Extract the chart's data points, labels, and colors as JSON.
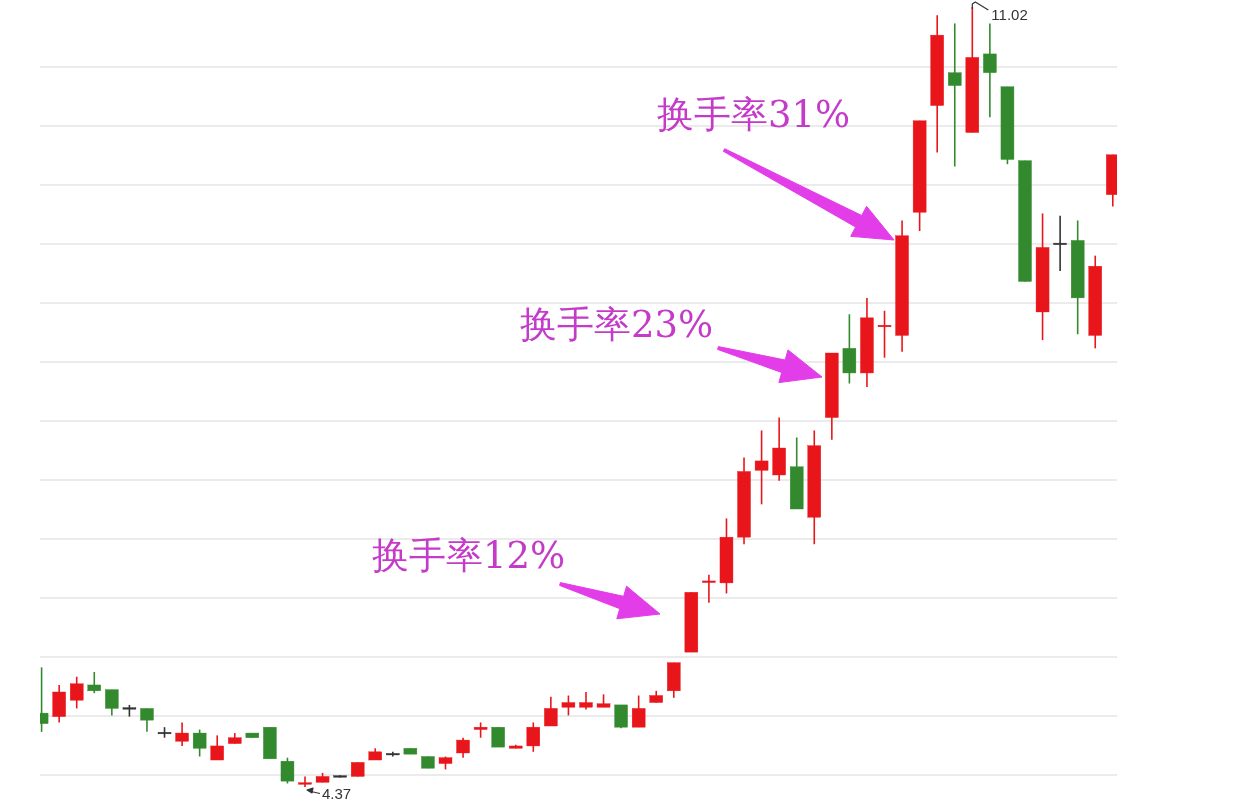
{
  "chart_data": {
    "type": "candlestick",
    "categories": [
      null,
      null,
      null,
      null,
      null,
      null,
      null,
      null,
      null,
      null,
      null,
      null,
      null,
      null,
      null,
      null,
      null,
      null,
      null,
      null,
      null,
      null,
      null,
      null,
      null,
      null,
      null,
      null,
      null,
      null,
      null,
      null,
      null,
      null,
      null,
      null,
      null,
      null,
      null,
      null,
      null,
      null,
      null,
      null,
      null,
      null,
      null,
      null,
      null,
      null,
      null,
      null,
      null,
      null,
      null,
      null,
      null,
      null,
      null,
      null,
      null,
      null
    ],
    "ohlc": [
      [
        5.0,
        5.39,
        4.84,
        4.91
      ],
      [
        4.97,
        5.24,
        4.92,
        5.18
      ],
      [
        5.11,
        5.31,
        5.04,
        5.25
      ],
      [
        5.24,
        5.35,
        5.17,
        5.19
      ],
      [
        5.2,
        5.2,
        4.98,
        5.04
      ],
      [
        5.04,
        5.07,
        4.97,
        5.04
      ],
      [
        5.04,
        5.04,
        4.84,
        4.94
      ],
      [
        4.83,
        4.88,
        4.79,
        4.83
      ],
      [
        4.76,
        4.92,
        4.72,
        4.83
      ],
      [
        4.83,
        4.86,
        4.63,
        4.7
      ],
      [
        4.6,
        4.81,
        4.6,
        4.72
      ],
      [
        4.74,
        4.83,
        4.74,
        4.79
      ],
      [
        4.83,
        4.83,
        4.79,
        4.79
      ],
      [
        4.88,
        4.88,
        4.61,
        4.61
      ],
      [
        4.59,
        4.62,
        4.4,
        4.42
      ],
      [
        4.4,
        4.46,
        4.37,
        4.4
      ],
      [
        4.41,
        4.49,
        4.41,
        4.46
      ],
      [
        4.46,
        4.47,
        4.45,
        4.46
      ],
      [
        4.46,
        4.58,
        4.46,
        4.58
      ],
      [
        4.6,
        4.7,
        4.6,
        4.67
      ],
      [
        4.65,
        4.67,
        4.63,
        4.65
      ],
      [
        4.7,
        4.7,
        4.65,
        4.65
      ],
      [
        4.63,
        4.63,
        4.53,
        4.53
      ],
      [
        4.57,
        4.63,
        4.52,
        4.62
      ],
      [
        4.66,
        4.79,
        4.62,
        4.77
      ],
      [
        4.86,
        4.92,
        4.79,
        4.88
      ],
      [
        4.88,
        4.88,
        4.71,
        4.71
      ],
      [
        4.7,
        4.73,
        4.7,
        4.72
      ],
      [
        4.72,
        4.92,
        4.67,
        4.88
      ],
      [
        4.89,
        5.14,
        4.89,
        5.04
      ],
      [
        5.05,
        5.15,
        4.98,
        5.09
      ],
      [
        5.05,
        5.18,
        5.03,
        5.09
      ],
      [
        5.05,
        5.16,
        5.05,
        5.08
      ],
      [
        5.07,
        5.07,
        4.87,
        4.88
      ],
      [
        4.88,
        5.15,
        4.88,
        5.04
      ],
      [
        5.09,
        5.19,
        5.09,
        5.15
      ],
      [
        5.19,
        5.43,
        5.13,
        5.43
      ],
      [
        5.52,
        6.03,
        5.52,
        6.03
      ],
      [
        6.12,
        6.18,
        5.94,
        6.12
      ],
      [
        6.11,
        6.66,
        6.02,
        6.5
      ],
      [
        6.5,
        7.18,
        6.44,
        7.06
      ],
      [
        7.07,
        7.41,
        6.78,
        7.15
      ],
      [
        7.03,
        7.52,
        6.98,
        7.26
      ],
      [
        7.1,
        7.35,
        6.74,
        6.74
      ],
      [
        6.67,
        7.41,
        6.44,
        7.28
      ],
      [
        7.52,
        8.07,
        7.33,
        8.07
      ],
      [
        8.11,
        8.4,
        7.81,
        7.9
      ],
      [
        7.9,
        8.54,
        7.78,
        8.37
      ],
      [
        8.3,
        8.43,
        8.03,
        8.3
      ],
      [
        8.22,
        9.2,
        8.08,
        9.07
      ],
      [
        9.27,
        10.05,
        9.11,
        10.05
      ],
      [
        10.18,
        10.95,
        9.78,
        10.78
      ],
      [
        10.46,
        10.88,
        9.66,
        10.35
      ],
      [
        9.95,
        11.02,
        9.95,
        10.59
      ],
      [
        10.62,
        10.88,
        10.08,
        10.46
      ],
      [
        10.34,
        10.34,
        9.68,
        9.72
      ],
      [
        9.71,
        9.71,
        8.68,
        8.68
      ],
      [
        8.42,
        9.26,
        8.18,
        8.97
      ],
      [
        9.0,
        9.24,
        8.77,
        9.0
      ],
      [
        9.03,
        9.2,
        8.23,
        8.54
      ],
      [
        8.22,
        8.9,
        8.11,
        8.81
      ],
      [
        9.42,
        9.76,
        9.32,
        9.76
      ]
    ],
    "colors": [
      "#338a2e",
      "#e8161b",
      "#e8161b",
      "#338a2e",
      "#338a2e",
      "#333333",
      "#338a2e",
      "#333333",
      "#e8161b",
      "#338a2e",
      "#e8161b",
      "#e8161b",
      "#338a2e",
      "#338a2e",
      "#338a2e",
      "#e8161b",
      "#e8161b",
      "#333333",
      "#e8161b",
      "#e8161b",
      "#333333",
      "#338a2e",
      "#338a2e",
      "#e8161b",
      "#e8161b",
      "#e8161b",
      "#338a2e",
      "#e8161b",
      "#e8161b",
      "#e8161b",
      "#e8161b",
      "#e8161b",
      "#e8161b",
      "#338a2e",
      "#e8161b",
      "#e8161b",
      "#e8161b",
      "#e8161b",
      "#e8161b",
      "#e8161b",
      "#e8161b",
      "#e8161b",
      "#e8161b",
      "#338a2e",
      "#e8161b",
      "#e8161b",
      "#338a2e",
      "#e8161b",
      "#e8161b",
      "#e8161b",
      "#e8161b",
      "#e8161b",
      "#338a2e",
      "#e8161b",
      "#338a2e",
      "#338a2e",
      "#338a2e",
      "#e8161b",
      "#333333",
      "#338a2e",
      "#e8161b",
      "#e8161b"
    ],
    "grid": true,
    "annotations": [
      "换手率12%",
      "换手率23%",
      "换手率31%",
      "11.02",
      "4.37"
    ]
  }
}
